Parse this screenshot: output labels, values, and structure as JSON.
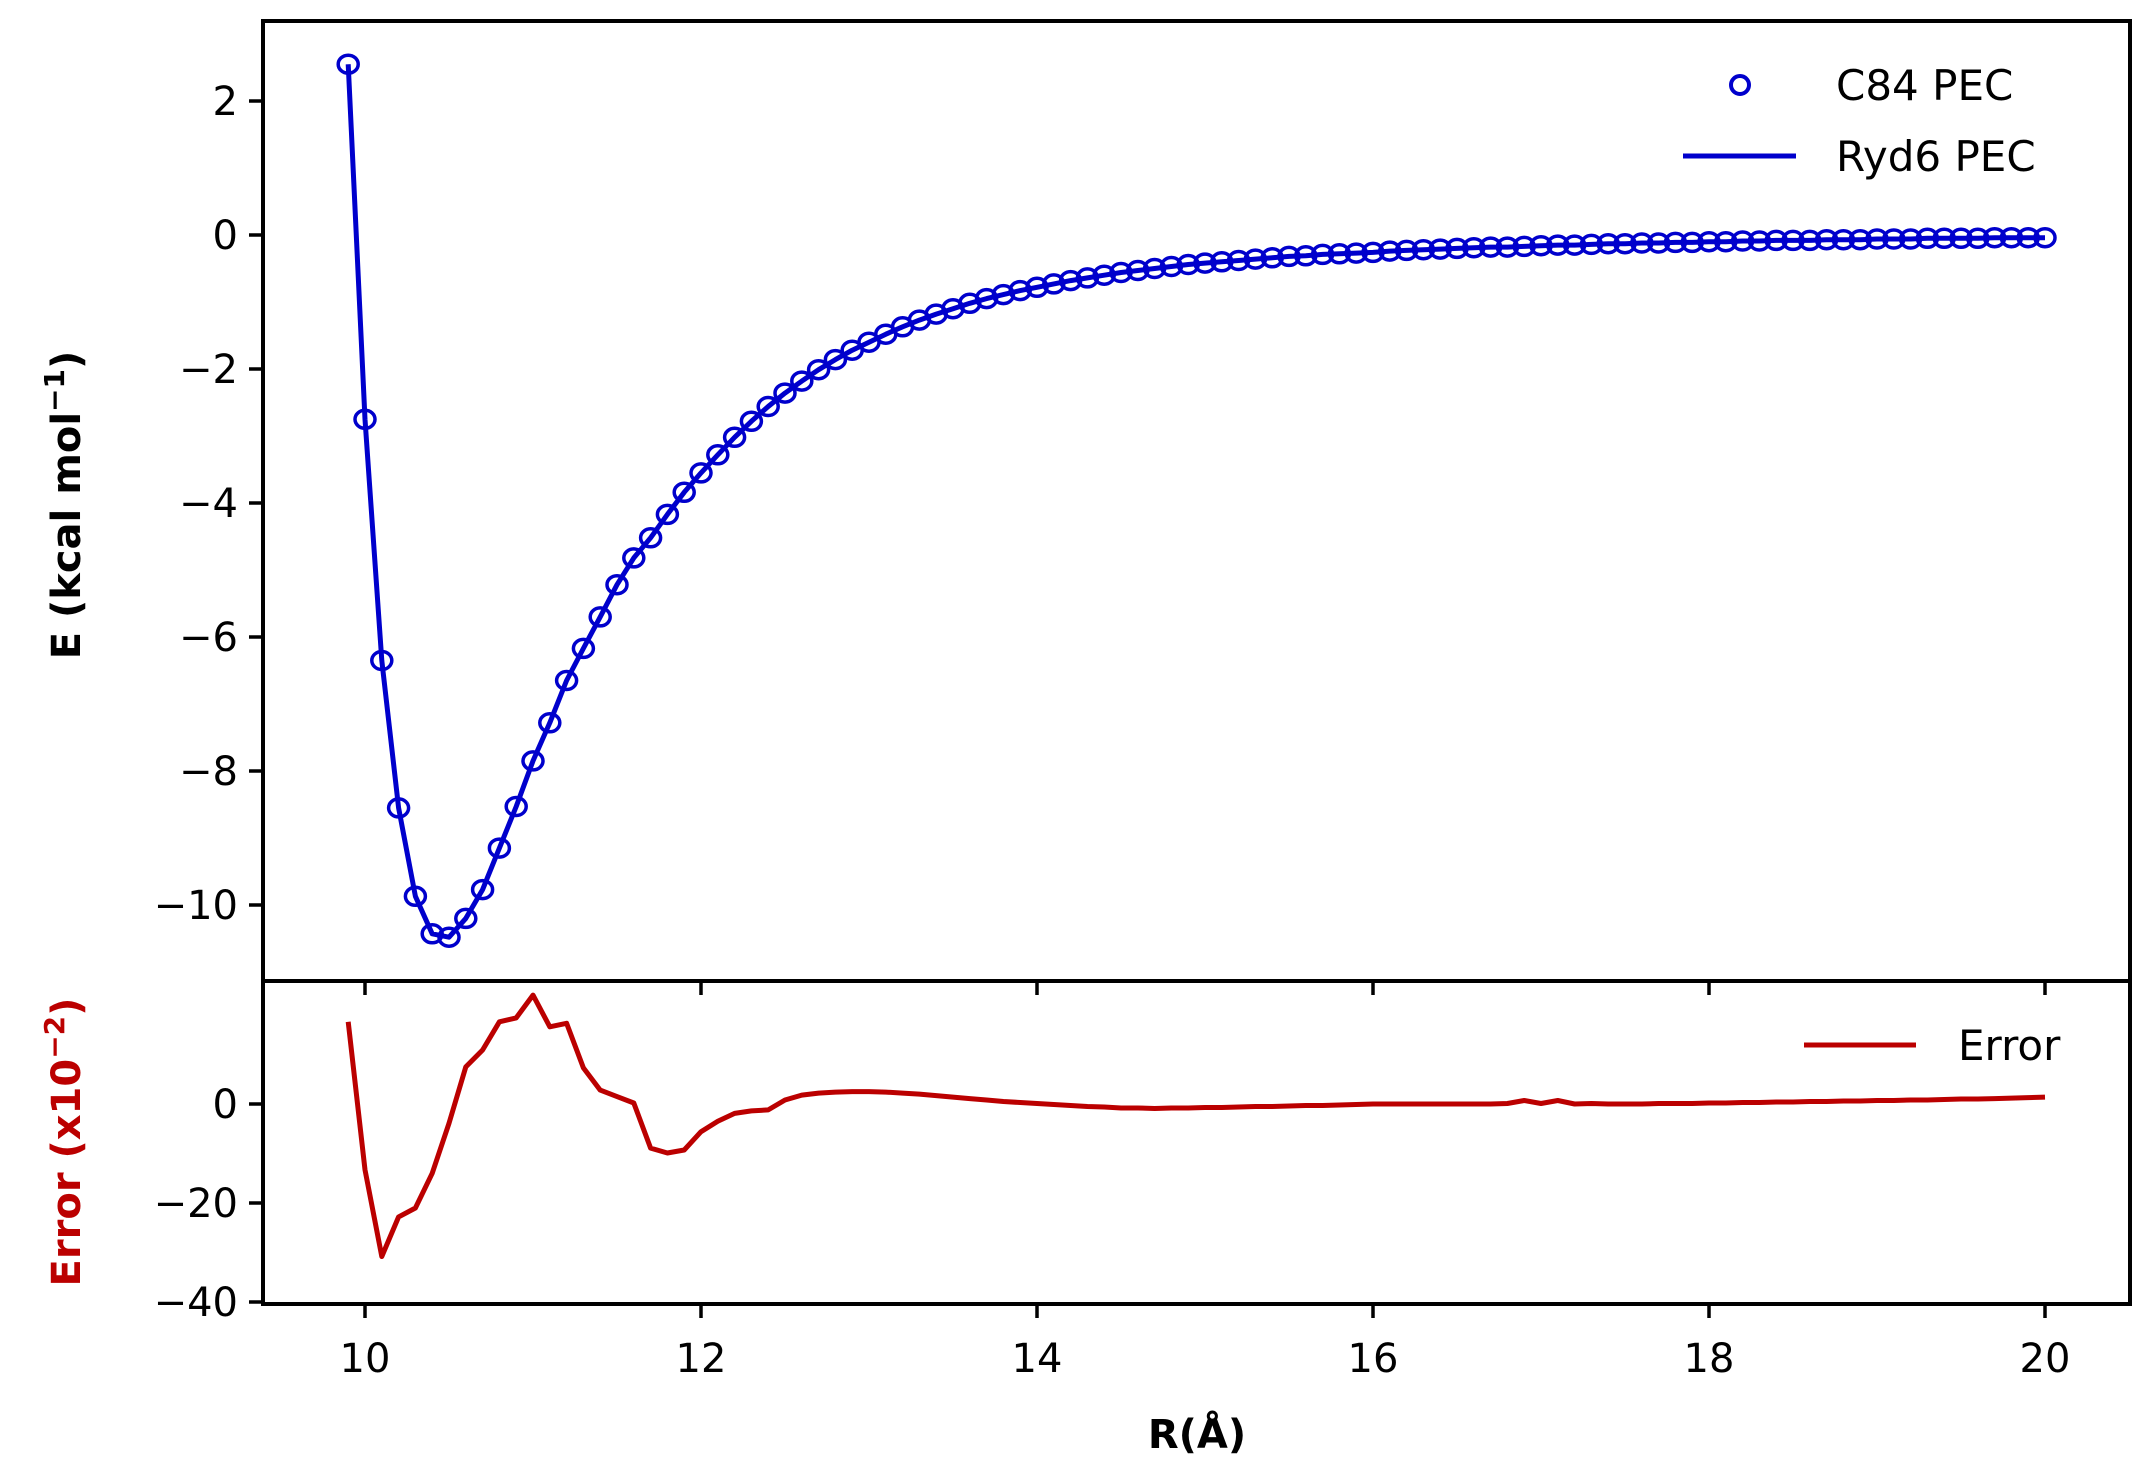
{
  "chart_data": [
    {
      "panel": "top",
      "type": "line",
      "xlabel": "",
      "ylabel": "E (kcal mol⁻¹)",
      "xlim": [
        9.38,
        20.56
      ],
      "ylim": [
        -11.12,
        3.19
      ],
      "grid": false,
      "legend_position": "upper right",
      "yticks": [
        2,
        0,
        -2,
        -4,
        -6,
        -8,
        -10
      ],
      "ytick_labels": [
        "2",
        "0",
        "−2",
        "−4",
        "−6",
        "−8",
        "−10"
      ],
      "series": [
        {
          "name": "C84 PEC",
          "style": "open-circle-markers",
          "color": "#0000CC"
        },
        {
          "name": "Ryd6 PEC",
          "style": "solid-line",
          "color": "#0000CC"
        }
      ],
      "x": [
        9.9,
        10.0,
        10.1,
        10.2,
        10.3,
        10.4,
        10.5,
        10.6,
        10.7,
        10.8,
        10.9,
        11.0,
        11.1,
        11.2,
        11.3,
        11.4,
        11.5,
        11.6,
        11.7,
        11.8,
        11.9,
        12.0,
        12.1,
        12.2,
        12.3,
        12.4,
        12.5,
        12.6,
        12.7,
        12.8,
        12.9,
        13.0,
        13.1,
        13.2,
        13.3,
        13.4,
        13.5,
        13.6,
        13.7,
        13.8,
        13.9,
        14.0,
        14.1,
        14.2,
        14.3,
        14.4,
        14.5,
        14.6,
        14.7,
        14.8,
        14.9,
        15.0,
        15.1,
        15.2,
        15.3,
        15.4,
        15.5,
        15.6,
        15.7,
        15.8,
        15.9,
        16.0,
        16.1,
        16.2,
        16.3,
        16.4,
        16.5,
        16.6,
        16.7,
        16.8,
        16.9,
        17.0,
        17.1,
        17.2,
        17.3,
        17.4,
        17.5,
        17.6,
        17.7,
        17.8,
        17.9,
        18.0,
        18.1,
        18.2,
        18.3,
        18.4,
        18.5,
        18.6,
        18.7,
        18.8,
        18.9,
        19.0,
        19.1,
        19.2,
        19.3,
        19.4,
        19.5,
        19.6,
        19.7,
        19.8,
        19.9,
        20.0
      ],
      "values": [
        2.55,
        -2.75,
        -6.35,
        -8.55,
        -9.87,
        -10.43,
        -10.48,
        -10.2,
        -9.77,
        -9.15,
        -8.53,
        -7.85,
        -7.28,
        -6.65,
        -6.17,
        -5.7,
        -5.22,
        -4.82,
        -4.52,
        -4.17,
        -3.84,
        -3.55,
        -3.28,
        -3.02,
        -2.78,
        -2.56,
        -2.36,
        -2.18,
        -2.01,
        -1.86,
        -1.72,
        -1.6,
        -1.48,
        -1.37,
        -1.27,
        -1.18,
        -1.1,
        -1.02,
        -0.95,
        -0.89,
        -0.83,
        -0.78,
        -0.73,
        -0.68,
        -0.64,
        -0.6,
        -0.56,
        -0.53,
        -0.5,
        -0.47,
        -0.44,
        -0.42,
        -0.4,
        -0.38,
        -0.36,
        -0.34,
        -0.32,
        -0.31,
        -0.29,
        -0.28,
        -0.27,
        -0.26,
        -0.24,
        -0.23,
        -0.22,
        -0.21,
        -0.2,
        -0.19,
        -0.18,
        -0.18,
        -0.17,
        -0.16,
        -0.15,
        -0.15,
        -0.14,
        -0.13,
        -0.13,
        -0.12,
        -0.12,
        -0.11,
        -0.11,
        -0.1,
        -0.1,
        -0.09,
        -0.09,
        -0.08,
        -0.08,
        -0.08,
        -0.07,
        -0.07,
        -0.07,
        -0.06,
        -0.06,
        -0.06,
        -0.05,
        -0.05,
        -0.05,
        -0.05,
        -0.04,
        -0.04,
        -0.04,
        -0.04
      ]
    },
    {
      "panel": "bottom",
      "type": "line",
      "xlabel": "R(Å)",
      "ylabel": "Error (x10⁻²)",
      "ylabel_color": "#BB0000",
      "xlim": [
        9.38,
        20.56
      ],
      "ylim": [
        -40,
        24.6
      ],
      "grid": false,
      "legend_position": "upper right",
      "xticks": [
        10,
        12,
        14,
        16,
        18,
        20
      ],
      "xtick_labels": [
        "10",
        "12",
        "14",
        "16",
        "18",
        "20"
      ],
      "yticks": [
        0,
        -20,
        -40
      ],
      "ytick_labels": [
        "0",
        "−20",
        "−40"
      ],
      "series": [
        {
          "name": "Error",
          "style": "solid-line",
          "color": "#BB0000"
        }
      ],
      "x": [
        9.9,
        10.0,
        10.1,
        10.2,
        10.3,
        10.4,
        10.5,
        10.6,
        10.7,
        10.8,
        10.9,
        11.0,
        11.1,
        11.2,
        11.3,
        11.4,
        11.5,
        11.6,
        11.7,
        11.8,
        11.9,
        12.0,
        12.1,
        12.2,
        12.3,
        12.4,
        12.5,
        12.6,
        12.7,
        12.8,
        12.9,
        13.0,
        13.1,
        13.2,
        13.3,
        13.4,
        13.5,
        13.6,
        13.7,
        13.8,
        13.9,
        14.0,
        14.1,
        14.2,
        14.3,
        14.4,
        14.5,
        14.6,
        14.7,
        14.8,
        14.9,
        15.0,
        15.1,
        15.2,
        15.3,
        15.4,
        15.5,
        15.6,
        15.7,
        15.8,
        15.9,
        16.0,
        16.1,
        16.2,
        16.3,
        16.4,
        16.5,
        16.6,
        16.7,
        16.8,
        16.9,
        17.0,
        17.1,
        17.2,
        17.3,
        17.4,
        17.5,
        17.6,
        17.7,
        17.8,
        17.9,
        18.0,
        18.1,
        18.2,
        18.3,
        18.4,
        18.5,
        18.6,
        18.7,
        18.8,
        18.9,
        19.0,
        19.1,
        19.2,
        19.3,
        19.4,
        19.5,
        19.6,
        19.7,
        19.8,
        19.9,
        20.0
      ],
      "values": [
        16.6,
        -13.3,
        -30.8,
        -22.8,
        -21.0,
        -14.0,
        -3.9,
        7.5,
        10.9,
        16.6,
        17.4,
        22.0,
        15.6,
        16.3,
        7.3,
        2.8,
        1.5,
        0.2,
        -8.9,
        -9.9,
        -9.3,
        -5.6,
        -3.5,
        -1.9,
        -1.4,
        -1.2,
        0.8,
        1.8,
        2.2,
        2.4,
        2.5,
        2.5,
        2.4,
        2.2,
        2.0,
        1.7,
        1.4,
        1.1,
        0.8,
        0.5,
        0.3,
        0.1,
        -0.1,
        -0.3,
        -0.5,
        -0.6,
        -0.8,
        -0.8,
        -0.9,
        -0.8,
        -0.8,
        -0.7,
        -0.7,
        -0.6,
        -0.5,
        -0.5,
        -0.4,
        -0.3,
        -0.3,
        -0.2,
        -0.1,
        0.0,
        0.0,
        0.0,
        0.0,
        0.0,
        0.0,
        0.0,
        0.0,
        0.1,
        0.7,
        0.1,
        0.7,
        0.0,
        0.1,
        0.0,
        0.0,
        0.0,
        0.1,
        0.1,
        0.1,
        0.2,
        0.2,
        0.3,
        0.3,
        0.4,
        0.4,
        0.5,
        0.5,
        0.6,
        0.6,
        0.7,
        0.7,
        0.8,
        0.8,
        0.9,
        1.0,
        1.0,
        1.1,
        1.2,
        1.3,
        1.4
      ]
    }
  ],
  "labels": {
    "top_ylabel": "E (kcal mol",
    "top_ylabel_sup": "−1",
    "top_ylabel_close": ")",
    "bottom_ylabel": "Error (x10",
    "bottom_ylabel_sup": "−2",
    "bottom_ylabel_close": ")",
    "xlabel": "R(Å)",
    "legend_top_1": "C84 PEC",
    "legend_top_2": "Ryd6 PEC",
    "legend_bottom_1": "Error"
  },
  "colors": {
    "blue": "#0000CC",
    "red": "#BB0000"
  }
}
